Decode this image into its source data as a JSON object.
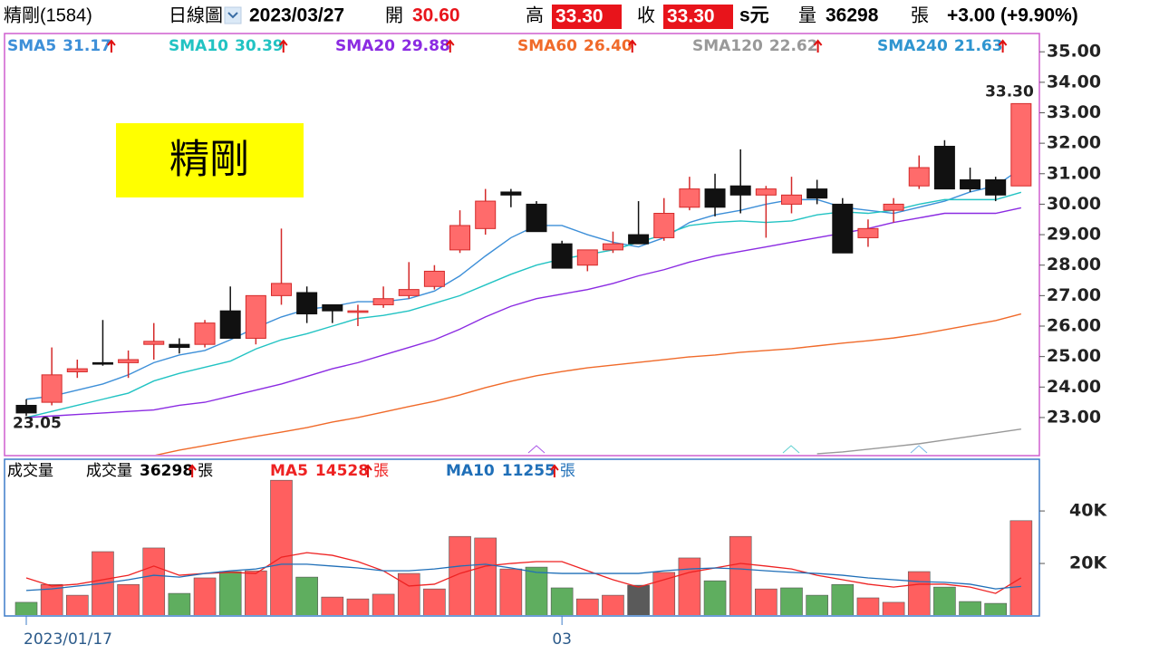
{
  "header": {
    "name": "精剛(1584)",
    "period": "日線圖",
    "date": "2023/03/27",
    "open_label": "開",
    "open": "30.60",
    "high_label": "高",
    "high": "33.30",
    "close_label": "收",
    "close": "33.30",
    "currency": "s元",
    "volume_label": "量",
    "volume": "36298",
    "volume_unit": "張",
    "change": "+3.00 (+9.90%)"
  },
  "chart_data": [
    {
      "type": "candlestick",
      "label": "精剛",
      "open": [
        23.4,
        23.5,
        24.5,
        24.8,
        24.8,
        25.4,
        25.4,
        25.4,
        26.5,
        25.6,
        27.0,
        27.1,
        26.7,
        26.45,
        26.7,
        27.0,
        27.3,
        28.5,
        29.2,
        30.4,
        30.0,
        28.7,
        28.0,
        28.5,
        29.0,
        28.9,
        29.9,
        30.5,
        30.6,
        30.3,
        30.0,
        30.5,
        30.0,
        28.9,
        29.8,
        30.6,
        31.9,
        30.8,
        30.8,
        30.6
      ],
      "high": [
        23.6,
        25.3,
        24.9,
        26.2,
        25.2,
        26.1,
        25.6,
        26.2,
        27.3,
        27.0,
        29.2,
        27.3,
        26.7,
        26.7,
        27.3,
        28.1,
        28.0,
        29.8,
        30.5,
        30.5,
        30.1,
        28.8,
        28.5,
        29.1,
        30.1,
        30.2,
        30.9,
        31.0,
        31.8,
        30.6,
        30.9,
        30.8,
        30.2,
        29.5,
        30.2,
        31.6,
        32.1,
        31.2,
        30.9,
        33.3
      ],
      "low": [
        23.05,
        23.4,
        24.3,
        24.7,
        24.3,
        24.9,
        25.1,
        25.3,
        25.6,
        25.4,
        26.7,
        26.1,
        26.1,
        26.0,
        26.6,
        26.9,
        27.2,
        28.4,
        29.0,
        29.9,
        29.1,
        27.9,
        27.8,
        28.4,
        28.7,
        28.8,
        29.8,
        29.6,
        29.7,
        28.9,
        29.7,
        30.0,
        28.4,
        28.6,
        29.4,
        30.5,
        30.5,
        30.4,
        30.1,
        30.6
      ],
      "close": [
        23.15,
        24.4,
        24.6,
        24.75,
        24.9,
        25.5,
        25.3,
        26.1,
        25.6,
        27.0,
        27.4,
        26.4,
        26.5,
        26.5,
        26.9,
        27.2,
        27.8,
        29.3,
        30.1,
        30.3,
        29.1,
        27.9,
        28.5,
        28.7,
        28.7,
        29.7,
        30.5,
        29.9,
        30.3,
        30.5,
        30.3,
        30.2,
        28.4,
        29.2,
        30.0,
        31.2,
        30.5,
        30.5,
        30.3,
        33.3
      ],
      "high_labels": [
        null,
        null,
        null,
        null,
        null,
        null,
        null,
        null,
        null,
        null,
        null,
        null,
        null,
        null,
        null,
        null,
        null,
        null,
        null,
        null,
        null,
        null,
        null,
        null,
        null,
        null,
        null,
        null,
        null,
        null,
        null,
        null,
        null,
        null,
        null,
        null,
        null,
        null,
        null,
        "33.30"
      ],
      "low_labels": [
        "23.05",
        null,
        null,
        null,
        null,
        null,
        null,
        null,
        null,
        null,
        null,
        null,
        null,
        null,
        null,
        null,
        null,
        null,
        null,
        null,
        null,
        null,
        null,
        null,
        null,
        null,
        null,
        null,
        null,
        null,
        null,
        null,
        null,
        null,
        null,
        null,
        null,
        null,
        null,
        null
      ],
      "up_color": "#ff6b6b",
      "down_color": "#111111",
      "ylim": [
        21.75,
        35.6
      ],
      "yticks": [
        {
          "value": 23,
          "label": "23.00"
        },
        {
          "value": 24,
          "label": "24.00"
        },
        {
          "value": 25,
          "label": "25.00"
        },
        {
          "value": 26,
          "label": "26.00"
        },
        {
          "value": 27,
          "label": "27.00"
        },
        {
          "value": 28,
          "label": "28.00"
        },
        {
          "value": 29,
          "label": "29.00"
        },
        {
          "value": 30,
          "label": "30.00"
        },
        {
          "value": 31,
          "label": "31.00"
        },
        {
          "value": 32,
          "label": "32.00"
        },
        {
          "value": 33,
          "label": "33.00"
        },
        {
          "value": 34,
          "label": "34.00"
        },
        {
          "value": 35,
          "label": "35.00"
        }
      ],
      "series": [
        {
          "name": "SMA5",
          "color": "#3d8fd8",
          "values": [
            23.6,
            23.7,
            23.9,
            24.1,
            24.4,
            24.8,
            25.05,
            25.2,
            25.55,
            25.95,
            26.3,
            26.55,
            26.65,
            26.8,
            26.8,
            26.9,
            27.15,
            27.65,
            28.3,
            28.9,
            29.3,
            29.3,
            29.0,
            28.75,
            28.6,
            28.9,
            29.4,
            29.65,
            29.8,
            30.0,
            30.15,
            30.15,
            29.9,
            29.8,
            29.7,
            29.9,
            30.1,
            30.4,
            30.6,
            31.17
          ],
          "value_labels": [
            null,
            null,
            null,
            null,
            null,
            null,
            null,
            null,
            null,
            null,
            null,
            null,
            null,
            null,
            null,
            null,
            null,
            null,
            null,
            null,
            null,
            null,
            null,
            null,
            null,
            null,
            null,
            null,
            null,
            null,
            null,
            null,
            null,
            null,
            null,
            null,
            null,
            null,
            null,
            "31.17"
          ]
        },
        {
          "name": "SMA10",
          "color": "#22c3c3",
          "values": [
            23.0,
            23.2,
            23.4,
            23.6,
            23.8,
            24.2,
            24.45,
            24.65,
            24.85,
            25.25,
            25.55,
            25.75,
            26.0,
            26.25,
            26.35,
            26.5,
            26.75,
            27.0,
            27.35,
            27.7,
            28.0,
            28.2,
            28.35,
            28.5,
            28.75,
            29.0,
            29.3,
            29.4,
            29.45,
            29.4,
            29.45,
            29.65,
            29.75,
            29.7,
            29.8,
            30.0,
            30.15,
            30.15,
            30.15,
            30.39
          ],
          "value_labels": [
            null,
            null,
            null,
            null,
            null,
            null,
            null,
            null,
            null,
            null,
            null,
            null,
            null,
            null,
            null,
            null,
            null,
            null,
            null,
            null,
            null,
            null,
            null,
            null,
            null,
            null,
            null,
            null,
            null,
            null,
            null,
            null,
            null,
            null,
            null,
            null,
            null,
            null,
            null,
            "30.39"
          ]
        },
        {
          "name": "SMA20",
          "color": "#8b2be2",
          "values": [
            23.0,
            23.05,
            23.1,
            23.15,
            23.2,
            23.25,
            23.4,
            23.5,
            23.7,
            23.9,
            24.1,
            24.35,
            24.6,
            24.8,
            25.05,
            25.3,
            25.55,
            25.9,
            26.3,
            26.65,
            26.9,
            27.05,
            27.2,
            27.4,
            27.65,
            27.85,
            28.1,
            28.3,
            28.45,
            28.6,
            28.75,
            28.9,
            29.05,
            29.2,
            29.4,
            29.55,
            29.7,
            29.7,
            29.7,
            29.88
          ],
          "value_labels": [
            null,
            null,
            null,
            null,
            null,
            null,
            null,
            null,
            null,
            null,
            null,
            null,
            null,
            null,
            null,
            null,
            null,
            null,
            null,
            null,
            null,
            null,
            null,
            null,
            null,
            null,
            null,
            null,
            null,
            null,
            null,
            null,
            null,
            null,
            null,
            null,
            null,
            null,
            null,
            "29.88"
          ]
        },
        {
          "name": "SMA60",
          "color": "#f06a2a",
          "values": [
            null,
            null,
            null,
            null,
            null,
            21.75,
            21.93,
            22.08,
            22.23,
            22.38,
            22.52,
            22.67,
            22.85,
            23.0,
            23.18,
            23.36,
            23.53,
            23.74,
            23.98,
            24.19,
            24.37,
            24.51,
            24.63,
            24.72,
            24.81,
            24.9,
            24.99,
            25.05,
            25.14,
            25.2,
            25.26,
            25.35,
            25.44,
            25.52,
            25.61,
            25.73,
            25.88,
            26.03,
            26.18,
            26.4
          ],
          "value_labels": [
            null,
            null,
            null,
            null,
            null,
            null,
            null,
            null,
            null,
            null,
            null,
            null,
            null,
            null,
            null,
            null,
            null,
            null,
            null,
            null,
            null,
            null,
            null,
            null,
            null,
            null,
            null,
            null,
            null,
            null,
            null,
            null,
            null,
            null,
            null,
            null,
            null,
            null,
            null,
            "26.40"
          ]
        },
        {
          "name": "SMA120",
          "color": "#999999",
          "values": [
            null,
            null,
            null,
            null,
            null,
            null,
            null,
            null,
            null,
            null,
            null,
            null,
            null,
            null,
            null,
            null,
            null,
            null,
            null,
            null,
            null,
            null,
            null,
            null,
            null,
            null,
            null,
            null,
            null,
            null,
            null,
            21.81,
            21.87,
            21.96,
            22.05,
            22.14,
            22.26,
            22.38,
            22.5,
            22.62
          ],
          "value_labels": [
            null,
            null,
            null,
            null,
            null,
            null,
            null,
            null,
            null,
            null,
            null,
            null,
            null,
            null,
            null,
            null,
            null,
            null,
            null,
            null,
            null,
            null,
            null,
            null,
            null,
            null,
            null,
            null,
            null,
            null,
            null,
            null,
            null,
            null,
            null,
            null,
            null,
            null,
            null,
            "22.62"
          ]
        },
        {
          "name": "SMA240",
          "color": "#2f95d0",
          "values": [
            null,
            null,
            null,
            null,
            null,
            null,
            null,
            null,
            null,
            null,
            null,
            null,
            null,
            null,
            null,
            null,
            null,
            null,
            null,
            null,
            null,
            null,
            null,
            null,
            null,
            null,
            null,
            null,
            null,
            null,
            null,
            null,
            null,
            null,
            null,
            null,
            null,
            null,
            null,
            21.63
          ],
          "value_labels": [
            null,
            null,
            null,
            null,
            null,
            null,
            null,
            null,
            null,
            null,
            null,
            null,
            null,
            null,
            null,
            null,
            null,
            null,
            null,
            null,
            null,
            null,
            null,
            null,
            null,
            null,
            null,
            null,
            null,
            null,
            null,
            null,
            null,
            null,
            null,
            null,
            null,
            null,
            null,
            "21.63"
          ]
        }
      ]
    },
    {
      "type": "bar",
      "title": "成交量",
      "unit": "張",
      "categories": [
        "2023/01/17",
        null,
        null,
        null,
        null,
        null,
        null,
        null,
        null,
        null,
        null,
        null,
        null,
        null,
        null,
        null,
        null,
        null,
        null,
        null,
        null,
        "03",
        null,
        null,
        null,
        null,
        null,
        null,
        null,
        null,
        null,
        null,
        null,
        null,
        null,
        null,
        null,
        null,
        null,
        null
      ],
      "ylim": [
        0,
        59700
      ],
      "yticks": [
        {
          "value": 20000,
          "label": "20K"
        },
        {
          "value": 40000,
          "label": "40K"
        }
      ],
      "series": [
        {
          "name": "成交量",
          "values": [
            5200,
            12000,
            7900,
            24500,
            12000,
            25900,
            8600,
            14500,
            16900,
            17200,
            51700,
            14800,
            7200,
            6500,
            8300,
            16200,
            10300,
            30300,
            29700,
            17900,
            18600,
            10700,
            6500,
            7900,
            11700,
            16600,
            22100,
            13400,
            30300,
            10300,
            10700,
            7900,
            12000,
            6900,
            5200,
            16900,
            11000,
            5500,
            4800,
            36298
          ],
          "colors": [
            "#5fae5f",
            "#ff5f5f",
            "#ff5f5f",
            "#ff5f5f",
            "#ff5f5f",
            "#ff5f5f",
            "#5fae5f",
            "#ff5f5f",
            "#5fae5f",
            "#ff5f5f",
            "#ff5f5f",
            "#5fae5f",
            "#ff5f5f",
            "#ff5f5f",
            "#ff5f5f",
            "#ff5f5f",
            "#ff5f5f",
            "#ff5f5f",
            "#ff5f5f",
            "#ff5f5f",
            "#5fae5f",
            "#5fae5f",
            "#ff5f5f",
            "#ff5f5f",
            "#5a5a5a",
            "#ff5f5f",
            "#ff5f5f",
            "#5fae5f",
            "#ff5f5f",
            "#ff5f5f",
            "#5fae5f",
            "#5fae5f",
            "#5fae5f",
            "#ff5f5f",
            "#ff5f5f",
            "#ff5f5f",
            "#5fae5f",
            "#5fae5f",
            "#5fae5f",
            "#ff5f5f"
          ]
        },
        {
          "name": "MA5",
          "color": "#ee2222",
          "values": [
            14500,
            11400,
            12100,
            13800,
            15500,
            19000,
            15500,
            16200,
            16600,
            16200,
            22400,
            24100,
            23100,
            20700,
            17200,
            11400,
            12100,
            16200,
            19000,
            20000,
            20700,
            20700,
            17200,
            13800,
            11000,
            13800,
            16600,
            18300,
            20000,
            19000,
            17900,
            15500,
            13800,
            12100,
            11000,
            12100,
            12100,
            11000,
            8600,
            14528
          ]
        },
        {
          "name": "MA10",
          "color": "#1f6fb8",
          "values": [
            9700,
            10300,
            11400,
            12400,
            13800,
            15500,
            14800,
            16200,
            17200,
            17900,
            19700,
            19700,
            19000,
            18300,
            17200,
            17200,
            17900,
            19000,
            19700,
            18300,
            16600,
            16200,
            16200,
            16200,
            16200,
            17200,
            17900,
            18300,
            17900,
            17200,
            16600,
            16200,
            15500,
            14500,
            13800,
            13100,
            12800,
            12100,
            10300,
            11255
          ]
        }
      ]
    }
  ]
}
